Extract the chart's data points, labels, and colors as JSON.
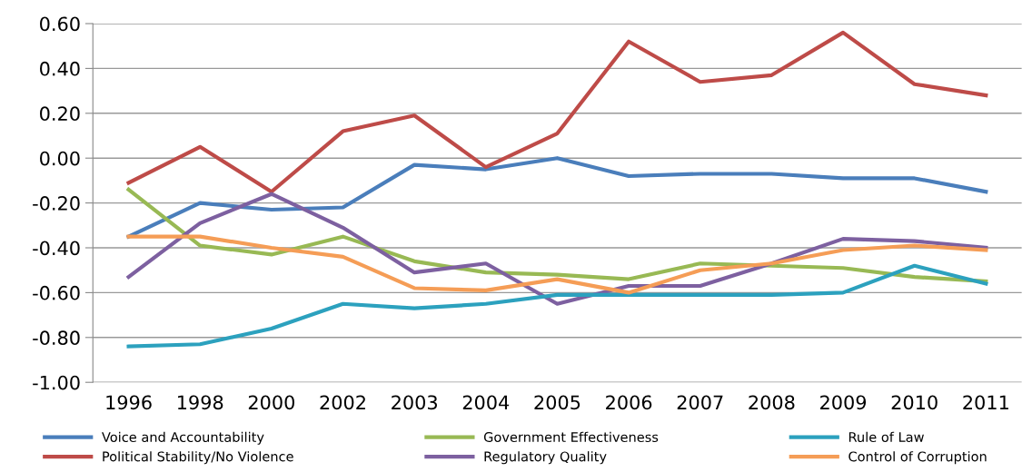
{
  "chart_data": {
    "type": "line",
    "categories": [
      "1996",
      "1998",
      "2000",
      "2002",
      "2003",
      "2004",
      "2005",
      "2006",
      "2007",
      "2008",
      "2009",
      "2010",
      "2011"
    ],
    "series": [
      {
        "name": "Voice and Accountability",
        "color": "#4a7ebb",
        "values": [
          -0.35,
          -0.2,
          -0.23,
          -0.22,
          -0.03,
          -0.05,
          0.0,
          -0.08,
          -0.07,
          -0.07,
          -0.09,
          -0.09,
          -0.15
        ]
      },
      {
        "name": "Political Stability/No Violence",
        "color": "#be4b48",
        "values": [
          -0.11,
          0.05,
          -0.15,
          0.12,
          0.19,
          -0.04,
          0.11,
          0.52,
          0.34,
          0.37,
          0.56,
          0.33,
          0.28
        ]
      },
      {
        "name": "Government Effectiveness",
        "color": "#98b954",
        "values": [
          -0.14,
          -0.39,
          -0.43,
          -0.35,
          -0.46,
          -0.51,
          -0.52,
          -0.54,
          -0.47,
          -0.48,
          -0.49,
          -0.53,
          -0.55
        ]
      },
      {
        "name": "Regulatory Quality",
        "color": "#7d60a0",
        "values": [
          -0.53,
          -0.29,
          -0.16,
          -0.31,
          -0.51,
          -0.47,
          -0.65,
          -0.57,
          -0.57,
          -0.47,
          -0.36,
          -0.37,
          -0.4
        ]
      },
      {
        "name": "Rule of Law",
        "color": "#2ca1be",
        "values": [
          -0.84,
          -0.83,
          -0.76,
          -0.65,
          -0.67,
          -0.65,
          -0.61,
          -0.61,
          -0.61,
          -0.61,
          -0.6,
          -0.48,
          -0.56
        ]
      },
      {
        "name": "Control of Corruption",
        "color": "#f59d56",
        "values": [
          -0.35,
          -0.35,
          -0.4,
          -0.44,
          -0.58,
          -0.59,
          -0.54,
          -0.6,
          -0.5,
          -0.47,
          -0.41,
          -0.39,
          -0.41
        ]
      }
    ],
    "ylim": [
      -1.0,
      0.6
    ],
    "yticks": [
      {
        "value": -1.0,
        "label": "-1.00"
      },
      {
        "value": -0.8,
        "label": "-0.80"
      },
      {
        "value": -0.6,
        "label": "-0.60"
      },
      {
        "value": -0.4,
        "label": "-0.40"
      },
      {
        "value": -0.2,
        "label": "-0.20"
      },
      {
        "value": 0.0,
        "label": "0.00"
      },
      {
        "value": 0.2,
        "label": "0.20"
      },
      {
        "value": 0.4,
        "label": "0.40"
      },
      {
        "value": 0.6,
        "label": "0.60"
      }
    ],
    "grid": "y",
    "legend": "bottom",
    "marker": "none",
    "line_style": "solid"
  }
}
